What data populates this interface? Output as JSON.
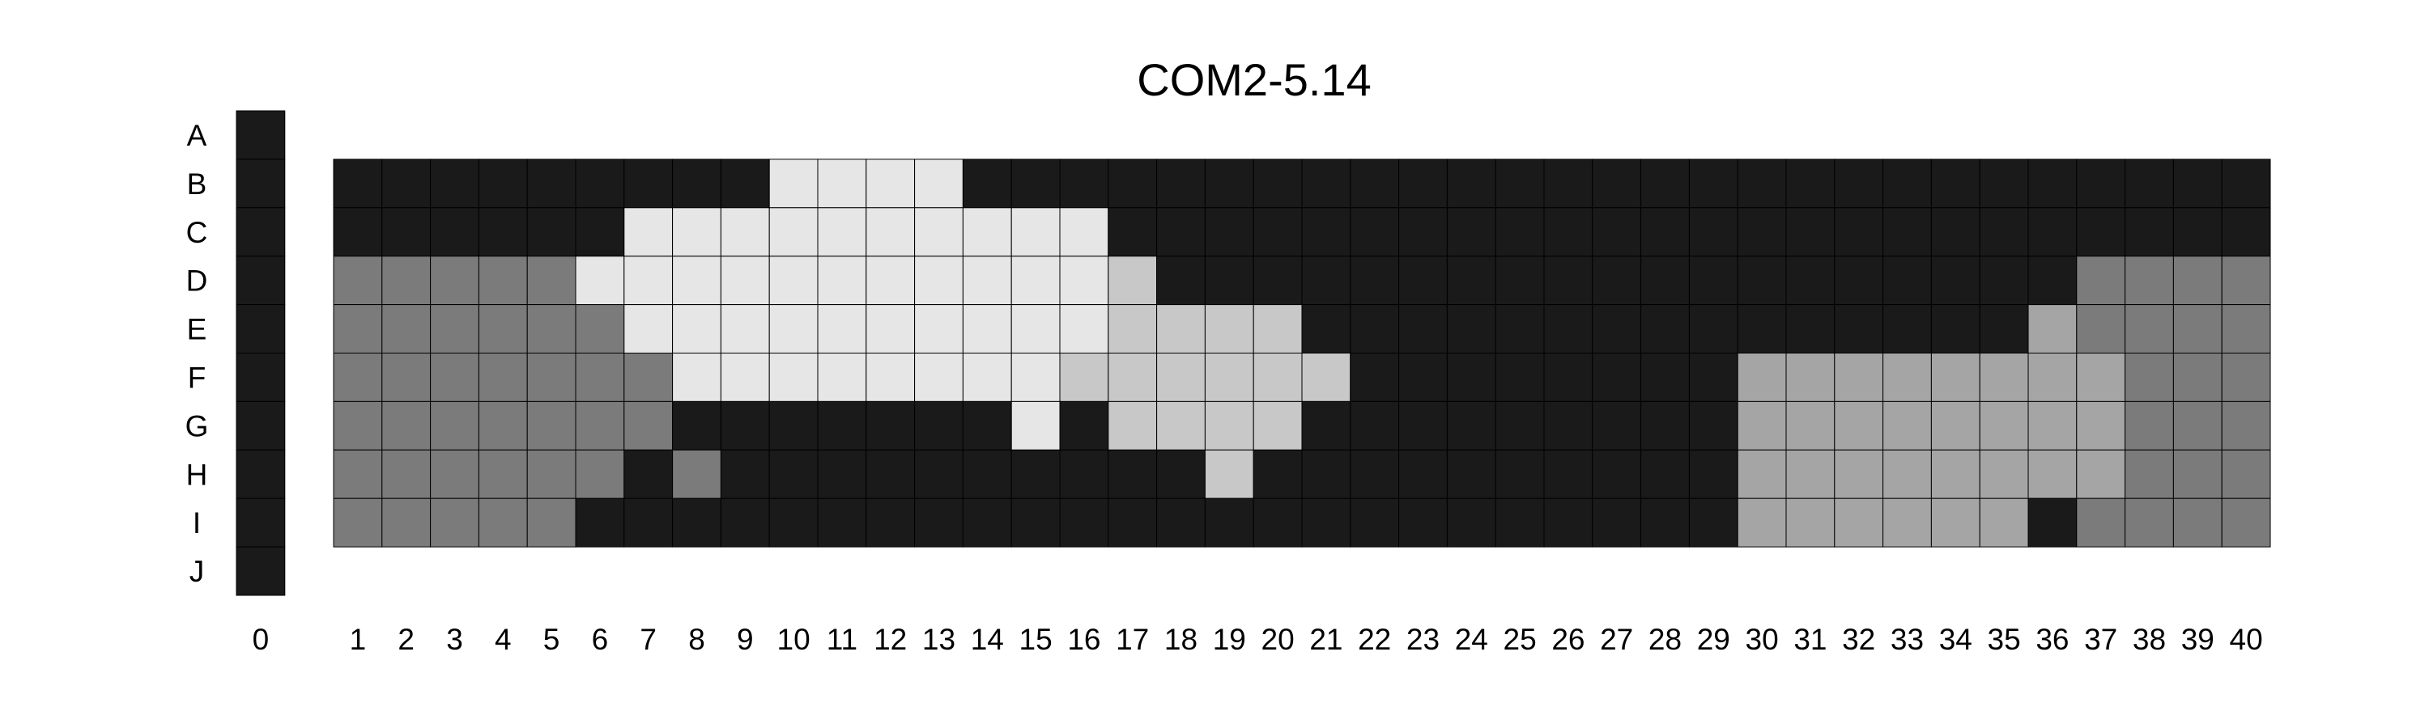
{
  "chart_data": {
    "type": "heatmap",
    "title": "COM2-5.14",
    "xlabel": "",
    "ylabel": "",
    "rows": [
      "A",
      "B",
      "C",
      "D",
      "E",
      "F",
      "G",
      "H",
      "I",
      "J"
    ],
    "columns": [
      "0",
      "1",
      "2",
      "3",
      "4",
      "5",
      "6",
      "7",
      "8",
      "9",
      "10",
      "11",
      "12",
      "13",
      "14",
      "15",
      "16",
      "17",
      "18",
      "19",
      "20",
      "21",
      "22",
      "23",
      "24",
      "25",
      "26",
      "27",
      "28",
      "29",
      "30",
      "31",
      "32",
      "33",
      "34",
      "35",
      "36",
      "37",
      "38",
      "39",
      "40"
    ],
    "column_zero_rows": [
      "A",
      "B",
      "C",
      "D",
      "E",
      "F",
      "G",
      "H",
      "I",
      "J"
    ],
    "main_grid_rows": [
      "B",
      "C",
      "D",
      "E",
      "F",
      "G",
      "H",
      "I"
    ],
    "levels": {
      "0": "#1a1a1a",
      "1": "#e6e6e6",
      "2": "#c8c8c8",
      "3": "#a5a5a5",
      "4": "#7b7b7b"
    },
    "column_zero_values": [
      0,
      0,
      0,
      0,
      0,
      0,
      0,
      0,
      0,
      0
    ],
    "values": [
      [
        0,
        0,
        0,
        0,
        0,
        0,
        0,
        0,
        0,
        1,
        1,
        1,
        1,
        0,
        0,
        0,
        0,
        0,
        0,
        0,
        0,
        0,
        0,
        0,
        0,
        0,
        0,
        0,
        0,
        0,
        0,
        0,
        0,
        0,
        0,
        0,
        0,
        0,
        0,
        0
      ],
      [
        0,
        0,
        0,
        0,
        0,
        0,
        1,
        1,
        1,
        1,
        1,
        1,
        1,
        1,
        1,
        1,
        0,
        0,
        0,
        0,
        0,
        0,
        0,
        0,
        0,
        0,
        0,
        0,
        0,
        0,
        0,
        0,
        0,
        0,
        0,
        0,
        0,
        0,
        0,
        0
      ],
      [
        4,
        4,
        4,
        4,
        4,
        1,
        1,
        1,
        1,
        1,
        1,
        1,
        1,
        1,
        1,
        1,
        2,
        0,
        0,
        0,
        0,
        0,
        0,
        0,
        0,
        0,
        0,
        0,
        0,
        0,
        0,
        0,
        0,
        0,
        0,
        0,
        4,
        4,
        4,
        4
      ],
      [
        4,
        4,
        4,
        4,
        4,
        4,
        1,
        1,
        1,
        1,
        1,
        1,
        1,
        1,
        1,
        1,
        2,
        2,
        2,
        2,
        0,
        0,
        0,
        0,
        0,
        0,
        0,
        0,
        0,
        0,
        0,
        0,
        0,
        0,
        0,
        3,
        4,
        4,
        4,
        4
      ],
      [
        4,
        4,
        4,
        4,
        4,
        4,
        4,
        1,
        1,
        1,
        1,
        1,
        1,
        1,
        1,
        2,
        2,
        2,
        2,
        2,
        2,
        0,
        0,
        0,
        0,
        0,
        0,
        0,
        0,
        3,
        3,
        3,
        3,
        3,
        3,
        3,
        3,
        4,
        4,
        4
      ],
      [
        4,
        4,
        4,
        4,
        4,
        4,
        4,
        0,
        0,
        0,
        0,
        0,
        0,
        0,
        1,
        0,
        2,
        2,
        2,
        2,
        0,
        0,
        0,
        0,
        0,
        0,
        0,
        0,
        0,
        3,
        3,
        3,
        3,
        3,
        3,
        3,
        3,
        4,
        4,
        4
      ],
      [
        4,
        4,
        4,
        4,
        4,
        4,
        0,
        4,
        0,
        0,
        0,
        0,
        0,
        0,
        0,
        0,
        0,
        0,
        2,
        0,
        0,
        0,
        0,
        0,
        0,
        0,
        0,
        0,
        0,
        3,
        3,
        3,
        3,
        3,
        3,
        3,
        3,
        4,
        4,
        4
      ],
      [
        4,
        4,
        4,
        4,
        4,
        0,
        0,
        0,
        0,
        0,
        0,
        0,
        0,
        0,
        0,
        0,
        0,
        0,
        0,
        0,
        0,
        0,
        0,
        0,
        0,
        0,
        0,
        0,
        0,
        3,
        3,
        3,
        3,
        3,
        3,
        0,
        4,
        4,
        4,
        4
      ]
    ]
  }
}
